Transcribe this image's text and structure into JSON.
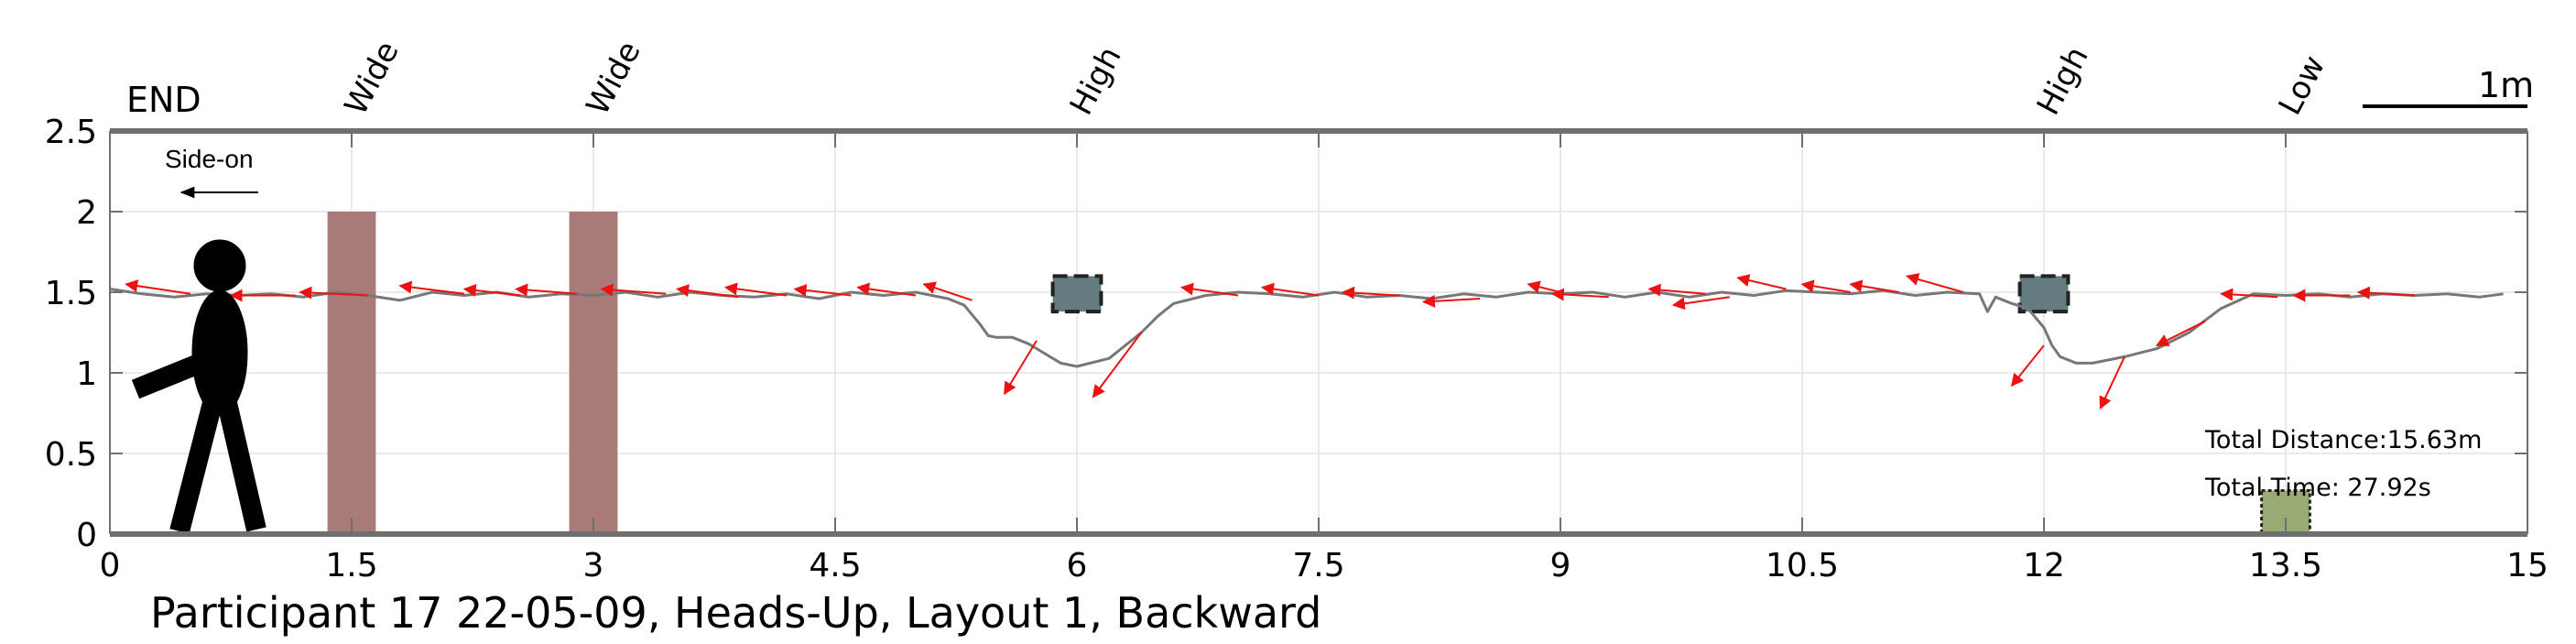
{
  "chart_data": {
    "type": "line",
    "caption": "Participant 17 22-05-09, Heads-Up, Layout 1, Backward",
    "xlim": [
      0,
      15
    ],
    "ylim": [
      0,
      2.5
    ],
    "xticks": [
      0,
      1.5,
      3,
      4.5,
      6,
      7.5,
      9,
      10.5,
      12,
      13.5,
      15
    ],
    "xtick_labels": [
      "0",
      "1.5",
      "3",
      "4.5",
      "6",
      "7.5",
      "9",
      "10.5",
      "12",
      "13.5",
      "15"
    ],
    "yticks": [
      0,
      0.5,
      1,
      1.5,
      2,
      2.5
    ],
    "ytick_labels": [
      "0",
      "0.5",
      "1",
      "1.5",
      "2",
      "2.5"
    ],
    "grid": true,
    "end_label": "END",
    "direction_label": "Side-on",
    "direction_arrow": "left",
    "scale_bar_label": "1m",
    "obstacle_labels": [
      {
        "x": 1.5,
        "text": "Wide"
      },
      {
        "x": 3.0,
        "text": "Wide"
      },
      {
        "x": 6.0,
        "text": "High"
      },
      {
        "x": 12.0,
        "text": "High"
      },
      {
        "x": 13.5,
        "text": "Low"
      }
    ],
    "obstacles": [
      {
        "type": "wide",
        "x0": 1.35,
        "x1": 1.65,
        "y0": 0,
        "y1": 2.0,
        "color": "#a87a78"
      },
      {
        "type": "wide",
        "x0": 2.85,
        "x1": 3.15,
        "y0": 0,
        "y1": 2.0,
        "color": "#a87a78"
      },
      {
        "type": "high",
        "x0": 5.85,
        "x1": 6.15,
        "y0": 1.38,
        "y1": 1.6,
        "color": "#627c7f"
      },
      {
        "type": "high",
        "x0": 11.85,
        "x1": 12.15,
        "y0": 1.38,
        "y1": 1.6,
        "color": "#627c7f"
      },
      {
        "type": "low",
        "x0": 13.35,
        "x1": 13.65,
        "y0": 0,
        "y1": 0.27,
        "color": "#98ab74"
      }
    ],
    "series": [
      {
        "kind": "trajectory",
        "color": "#777777",
        "x": [
          0,
          0.2,
          0.4,
          0.6,
          0.8,
          1.0,
          1.2,
          1.4,
          1.6,
          1.8,
          2.0,
          2.2,
          2.4,
          2.6,
          2.8,
          3.0,
          3.2,
          3.4,
          3.6,
          3.8,
          4.0,
          4.2,
          4.4,
          4.6,
          4.8,
          5.0,
          5.2,
          5.3,
          5.4,
          5.45,
          5.5,
          5.6,
          5.7,
          5.8,
          5.9,
          6.0,
          6.2,
          6.4,
          6.5,
          6.6,
          6.8,
          7.0,
          7.2,
          7.4,
          7.6,
          7.8,
          8.0,
          8.2,
          8.4,
          8.6,
          8.8,
          9.0,
          9.2,
          9.4,
          9.6,
          9.8,
          10.0,
          10.2,
          10.4,
          10.6,
          10.8,
          11.0,
          11.2,
          11.4,
          11.6,
          11.65,
          11.7,
          11.75,
          11.8,
          11.9,
          12.0,
          12.05,
          12.1,
          12.2,
          12.3,
          12.5,
          12.7,
          12.9,
          13.1,
          13.3,
          13.5,
          13.7,
          13.9,
          14.1,
          14.3,
          14.5,
          14.7,
          14.85
        ],
        "y": [
          1.52,
          1.49,
          1.47,
          1.49,
          1.48,
          1.49,
          1.47,
          1.5,
          1.48,
          1.45,
          1.5,
          1.48,
          1.5,
          1.47,
          1.49,
          1.48,
          1.5,
          1.47,
          1.5,
          1.48,
          1.47,
          1.49,
          1.46,
          1.5,
          1.48,
          1.5,
          1.46,
          1.42,
          1.3,
          1.23,
          1.22,
          1.22,
          1.18,
          1.12,
          1.06,
          1.04,
          1.09,
          1.25,
          1.35,
          1.43,
          1.48,
          1.5,
          1.49,
          1.47,
          1.5,
          1.47,
          1.48,
          1.46,
          1.49,
          1.47,
          1.5,
          1.49,
          1.5,
          1.47,
          1.5,
          1.47,
          1.5,
          1.48,
          1.51,
          1.5,
          1.49,
          1.51,
          1.48,
          1.5,
          1.49,
          1.38,
          1.47,
          1.45,
          1.43,
          1.4,
          1.28,
          1.17,
          1.1,
          1.06,
          1.06,
          1.1,
          1.15,
          1.25,
          1.4,
          1.49,
          1.48,
          1.49,
          1.47,
          1.49,
          1.48,
          1.49,
          1.47,
          1.49
        ]
      }
    ],
    "arrows": [
      [
        0.5,
        1.49,
        -0.4,
        0.06
      ],
      [
        1.15,
        1.48,
        -0.4,
        0.0
      ],
      [
        1.6,
        1.48,
        -0.42,
        0.02
      ],
      [
        2.2,
        1.49,
        -0.4,
        0.05
      ],
      [
        2.55,
        1.48,
        -0.35,
        0.04
      ],
      [
        2.9,
        1.49,
        -0.38,
        0.03
      ],
      [
        3.45,
        1.49,
        -0.4,
        0.03
      ],
      [
        3.9,
        1.47,
        -0.38,
        0.05
      ],
      [
        4.2,
        1.48,
        -0.38,
        0.05
      ],
      [
        4.6,
        1.48,
        -0.35,
        0.04
      ],
      [
        5.0,
        1.48,
        -0.36,
        0.05
      ],
      [
        5.35,
        1.45,
        -0.3,
        0.1
      ],
      [
        5.75,
        1.2,
        -0.2,
        -0.33
      ],
      [
        6.4,
        1.25,
        -0.3,
        -0.4
      ],
      [
        7.0,
        1.48,
        -0.35,
        0.05
      ],
      [
        7.5,
        1.48,
        -0.35,
        0.05
      ],
      [
        8.0,
        1.48,
        -0.35,
        0.02
      ],
      [
        8.5,
        1.46,
        -0.35,
        -0.02
      ],
      [
        9.0,
        1.5,
        -0.2,
        0.05
      ],
      [
        9.3,
        1.47,
        -0.35,
        0.02
      ],
      [
        9.9,
        1.49,
        -0.35,
        0.03
      ],
      [
        10.05,
        1.47,
        -0.35,
        -0.05
      ],
      [
        10.4,
        1.52,
        -0.3,
        0.07
      ],
      [
        10.8,
        1.5,
        -0.3,
        0.05
      ],
      [
        11.1,
        1.5,
        -0.3,
        0.05
      ],
      [
        11.5,
        1.5,
        -0.35,
        0.1
      ],
      [
        12.0,
        1.17,
        -0.2,
        -0.25
      ],
      [
        12.5,
        1.1,
        -0.15,
        -0.32
      ],
      [
        13.0,
        1.32,
        -0.3,
        -0.15
      ],
      [
        13.45,
        1.47,
        -0.35,
        0.02
      ],
      [
        13.9,
        1.48,
        -0.35,
        0.0
      ],
      [
        14.3,
        1.48,
        -0.35,
        0.02
      ]
    ],
    "annotations": {
      "total_distance": "Total Distance:15.63m",
      "total_time": "Total Time: 27.92s"
    }
  }
}
